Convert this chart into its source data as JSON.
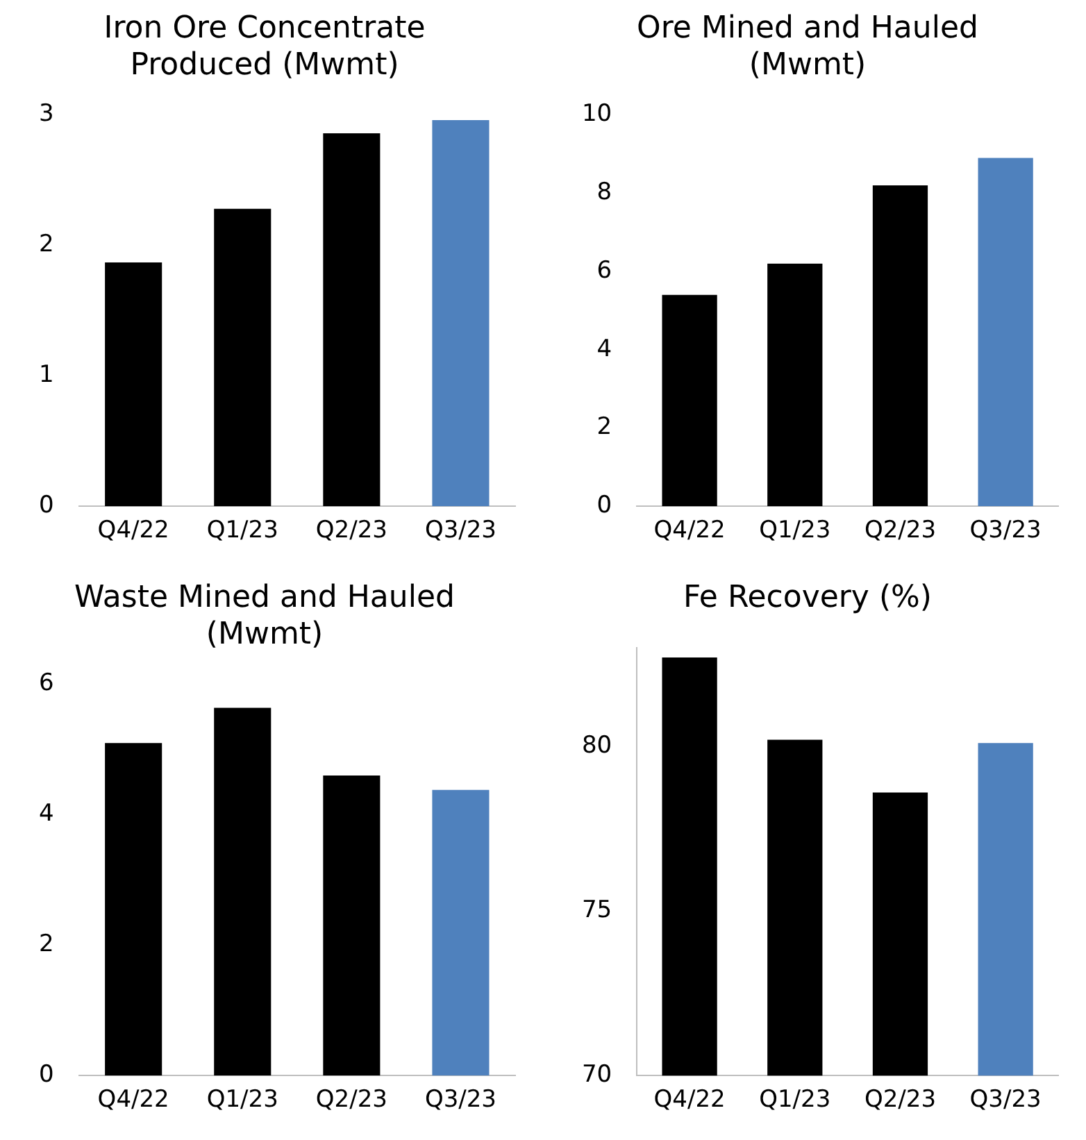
{
  "chart_data": [
    {
      "type": "bar",
      "title": "Iron Ore Concentrate Produced (Mwmt)",
      "categories": [
        "Q4/22",
        "Q1/23",
        "Q2/23",
        "Q3/23"
      ],
      "values": [
        1.87,
        2.28,
        2.86,
        2.96
      ],
      "colors": [
        "#000000",
        "#000000",
        "#000000",
        "#4f81bd"
      ],
      "ylim": [
        0,
        3
      ],
      "yticks": [
        0,
        1,
        2,
        3
      ]
    },
    {
      "type": "bar",
      "title": "Ore Mined and Hauled (Mwmt)",
      "categories": [
        "Q4/22",
        "Q1/23",
        "Q2/23",
        "Q3/23"
      ],
      "values": [
        5.4,
        6.2,
        8.2,
        8.9
      ],
      "colors": [
        "#000000",
        "#000000",
        "#000000",
        "#4f81bd"
      ],
      "ylim": [
        0,
        10
      ],
      "yticks": [
        0,
        2,
        4,
        6,
        8,
        10
      ]
    },
    {
      "type": "bar",
      "title": "Waste Mined and Hauled (Mwmt)",
      "categories": [
        "Q4/22",
        "Q1/23",
        "Q2/23",
        "Q3/23"
      ],
      "values": [
        5.1,
        5.64,
        4.6,
        4.38
      ],
      "colors": [
        "#000000",
        "#000000",
        "#000000",
        "#4f81bd"
      ],
      "ylim": [
        0,
        6
      ],
      "yticks": [
        0,
        2,
        4,
        6
      ]
    },
    {
      "type": "bar",
      "title": "Fe Recovery (%)",
      "categories": [
        "Q4/22",
        "Q1/23",
        "Q2/23",
        "Q3/23"
      ],
      "values": [
        82.7,
        80.2,
        78.6,
        80.1
      ],
      "colors": [
        "#000000",
        "#000000",
        "#000000",
        "#4f81bd"
      ],
      "ylim": [
        70,
        83
      ],
      "yticks": [
        70,
        75,
        80
      ]
    }
  ]
}
